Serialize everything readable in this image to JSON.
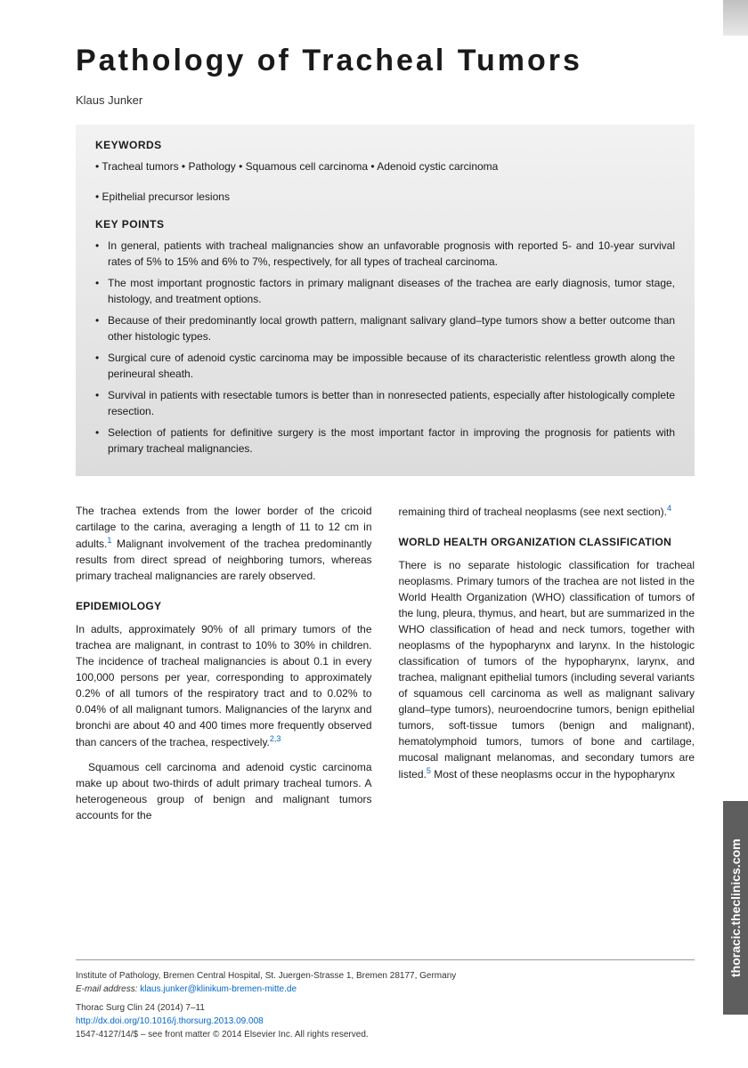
{
  "title": "Pathology of Tracheal Tumors",
  "author": "Klaus Junker",
  "sideTab": "thoracic.theclinics.com",
  "keywords": {
    "label": "KEYWORDS",
    "line1": "• Tracheal tumors • Pathology • Squamous cell carcinoma • Adenoid cystic carcinoma",
    "line2": "• Epithelial precursor lesions"
  },
  "keypoints": {
    "label": "KEY POINTS",
    "items": [
      "In general, patients with tracheal malignancies show an unfavorable prognosis with reported 5- and 10-year survival rates of 5% to 15% and 6% to 7%, respectively, for all types of tracheal carcinoma.",
      "The most important prognostic factors in primary malignant diseases of the trachea are early diagnosis, tumor stage, histology, and treatment options.",
      "Because of their predominantly local growth pattern, malignant salivary gland–type tumors show a better outcome than other histologic types.",
      "Surgical cure of adenoid cystic carcinoma may be impossible because of its characteristic relentless growth along the perineural sheath.",
      "Survival in patients with resectable tumors is better than in nonresected patients, especially after histologically complete resection.",
      "Selection of patients for definitive surgery is the most important factor in improving the prognosis for patients with primary tracheal malignancies."
    ]
  },
  "body": {
    "leftCol": {
      "intro": "The trachea extends from the lower border of the cricoid cartilage to the carina, averaging a length of 11 to 12 cm in adults.",
      "introRef": "1",
      "introCont": " Malignant involvement of the trachea predominantly results from direct spread of neighboring tumors, whereas primary tracheal malignancies are rarely observed.",
      "epiHeading": "EPIDEMIOLOGY",
      "epiP1": "In adults, approximately 90% of all primary tumors of the trachea are malignant, in contrast to 10% to 30% in children. The incidence of tracheal malignancies is about 0.1 in every 100,000 persons per year, corresponding to approximately 0.2% of all tumors of the respiratory tract and to 0.02% to 0.04% of all malignant tumors. Malignancies of the larynx and bronchi are about 40 and 400 times more frequently observed than cancers of the trachea, respectively.",
      "epiP1Ref": "2,3",
      "epiP2": "Squamous cell carcinoma and adenoid cystic carcinoma make up about two-thirds of adult primary tracheal tumors. A heterogeneous group of benign and malignant tumors accounts for the"
    },
    "rightCol": {
      "epiCont": "remaining third of tracheal neoplasms (see next section).",
      "epiContRef": "4",
      "whoHeading": "WORLD HEALTH ORGANIZATION CLASSIFICATION",
      "whoP1a": "There is no separate histologic classification for tracheal neoplasms. Primary tumors of the trachea are not listed in the World Health Organization (WHO) classification of tumors of the lung, pleura, thymus, and heart, but are summarized in the WHO classification of head and neck tumors, together with neoplasms of the hypopharynx and larynx. In the histologic classification of tumors of the hypopharynx, larynx, and trachea, malignant epithelial tumors (including several variants of squamous cell carcinoma as well as malignant salivary gland–type tumors), neuroendocrine tumors, benign epithelial tumors, soft-tissue tumors (benign and malignant), hematolymphoid tumors, tumors of bone and cartilage, mucosal malignant melanomas, and secondary tumors are listed.",
      "whoRef": "5",
      "whoP1b": " Most of these neoplasms occur in the hypopharynx"
    }
  },
  "footer": {
    "affiliation": "Institute of Pathology, Bremen Central Hospital, St. Juergen-Strasse 1, Bremen 28177, Germany",
    "emailLabel": "E-mail address:",
    "email": "klaus.junker@klinikum-bremen-mitte.de",
    "citation": "Thorac Surg Clin 24 (2014) 7–11",
    "doi": "http://dx.doi.org/10.1016/j.thorsurg.2013.09.008",
    "issn": "1547-4127/14/$ – see front matter © 2014 Elsevier Inc. All rights reserved."
  }
}
